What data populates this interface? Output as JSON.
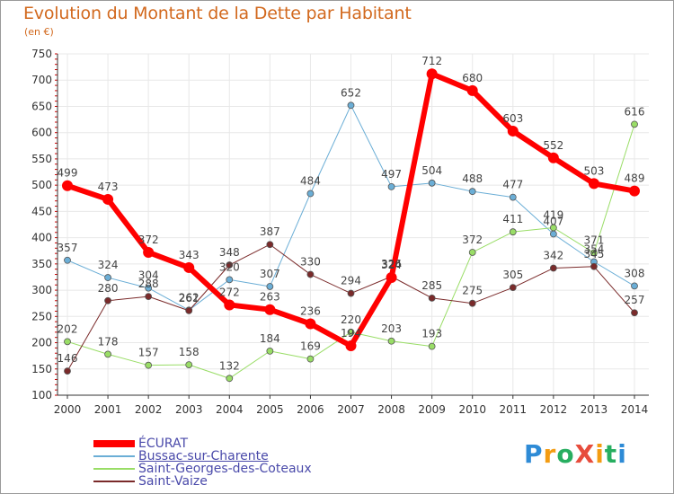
{
  "header": {
    "title": "Evolution du Montant de la Dette par Habitant",
    "subtitle": "(en €)"
  },
  "logo": {
    "text": "ProXiti"
  },
  "colors": {
    "ecurat": "#ff0000",
    "bussac": "#6baed6",
    "saint_georges": "#99dd66",
    "saint_vaize": "#7a2a2a",
    "label": "#444444",
    "grid": "#e8e8e8",
    "title": "#d2691e"
  },
  "chart_data": {
    "type": "line",
    "title": "Evolution du Montant de la Dette par Habitant",
    "ylabel": "(en €)",
    "xlabel": "",
    "x": [
      "2000",
      "2001",
      "2002",
      "2003",
      "2004",
      "2005",
      "2006",
      "2007",
      "2008",
      "2009",
      "2010",
      "2011",
      "2012",
      "2013",
      "2014"
    ],
    "ylim": [
      100,
      750
    ],
    "yticks": [
      100,
      150,
      200,
      250,
      300,
      350,
      400,
      450,
      500,
      550,
      600,
      650,
      700,
      750
    ],
    "grid": true,
    "legend_position": "bottom-left",
    "series": [
      {
        "name": "ÉCURAT",
        "color": "#ff0000",
        "width": 6,
        "values": [
          499,
          473,
          372,
          343,
          272,
          263,
          236,
          194,
          324,
          712,
          680,
          603,
          552,
          503,
          489
        ]
      },
      {
        "name": "Bussac-sur-Charente",
        "color": "#6baed6",
        "width": 1,
        "values": [
          357,
          324,
          304,
          262,
          320,
          307,
          484,
          652,
          497,
          504,
          488,
          477,
          407,
          354,
          308
        ]
      },
      {
        "name": "Saint-Georges-des-Coteaux",
        "color": "#99dd66",
        "width": 1,
        "values": [
          202,
          178,
          157,
          158,
          132,
          184,
          169,
          220,
          203,
          193,
          372,
          411,
          419,
          371,
          616
        ]
      },
      {
        "name": "Saint-Vaize",
        "color": "#7a2a2a",
        "width": 1,
        "values": [
          146,
          280,
          288,
          261,
          348,
          387,
          330,
          294,
          326,
          285,
          275,
          305,
          342,
          345,
          257
        ]
      }
    ]
  }
}
